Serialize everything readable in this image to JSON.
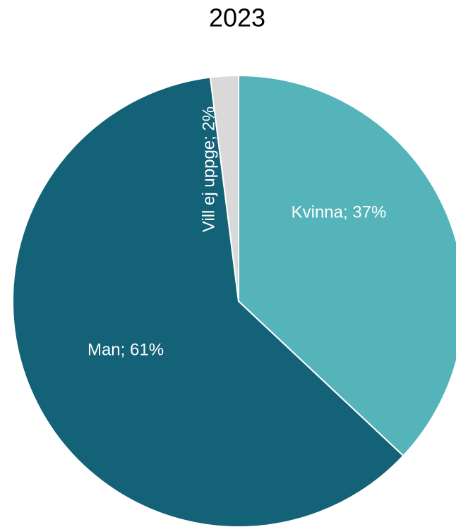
{
  "chart_data": {
    "type": "pie",
    "title": "2023",
    "values": [
      37,
      61,
      2
    ],
    "value_labels": [
      "Kvinna; 37%",
      "Man; 61%",
      "Vill ej uppge; 2%"
    ],
    "colors": [
      "#54b4ba",
      "#136278",
      "#d9d9d9"
    ]
  }
}
